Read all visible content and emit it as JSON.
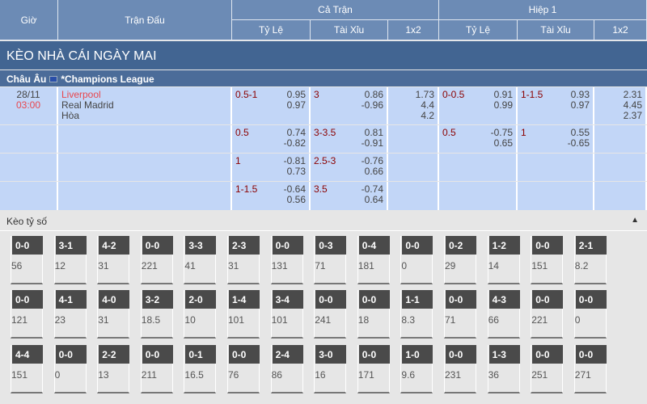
{
  "header": {
    "time": "Giờ",
    "match": "Trận Đấu",
    "full": "Cả Trận",
    "half": "Hiệp 1",
    "handicap": "Tỷ Lệ",
    "overunder": "Tài Xỉu",
    "onex2": "1x2"
  },
  "section_title": "KÈO NHÀ CÁI NGÀY MAI",
  "league": {
    "region": "Châu Âu",
    "name": "*Champions League"
  },
  "match": {
    "date": "28/11",
    "time": "03:00",
    "home": "Liverpool",
    "away": "Real Madrid",
    "draw": "Hòa"
  },
  "rows": [
    {
      "ft_hdp": "0.5-1",
      "ft_hdp_o": [
        "0.95",
        "0.97"
      ],
      "ft_ou": "3",
      "ft_ou_o": [
        "0.86",
        "-0.96"
      ],
      "ft_1x2": [
        "1.73",
        "4.4",
        "4.2"
      ],
      "h1_hdp": "0-0.5",
      "h1_hdp_o": [
        "0.91",
        "0.99"
      ],
      "h1_ou": "1-1.5",
      "h1_ou_o": [
        "0.93",
        "0.97"
      ],
      "h1_1x2": [
        "2.31",
        "4.45",
        "2.37"
      ]
    },
    {
      "ft_hdp": "0.5",
      "ft_hdp_o": [
        "0.74",
        "-0.82"
      ],
      "ft_ou": "3-3.5",
      "ft_ou_o": [
        "0.81",
        "-0.91"
      ],
      "h1_hdp": "0.5",
      "h1_hdp_o": [
        "-0.75",
        "0.65"
      ],
      "h1_ou": "1",
      "h1_ou_o": [
        "0.55",
        "-0.65"
      ]
    },
    {
      "ft_hdp": "1",
      "ft_hdp_o": [
        "-0.81",
        "0.73"
      ],
      "ft_ou": "2.5-3",
      "ft_ou_o": [
        "-0.76",
        "0.66"
      ]
    },
    {
      "ft_hdp": "1-1.5",
      "ft_hdp_o": [
        "-0.64",
        "0.56"
      ],
      "ft_ou": "3.5",
      "ft_ou_o": [
        "-0.74",
        "0.64"
      ]
    }
  ],
  "correct_score": {
    "title": "Kèo tỷ số",
    "toggle_icon": "caret-up-icon",
    "rows": [
      [
        [
          "0-0",
          "56"
        ],
        [
          "3-1",
          "12"
        ],
        [
          "4-2",
          "31"
        ],
        [
          "0-0",
          "221"
        ],
        [
          "3-3",
          "41"
        ],
        [
          "2-3",
          "31"
        ],
        [
          "0-0",
          "131"
        ],
        [
          "0-3",
          "71"
        ],
        [
          "0-4",
          "181"
        ],
        [
          "0-0",
          "0"
        ],
        [
          "0-2",
          "29"
        ],
        [
          "1-2",
          "14"
        ],
        [
          "0-0",
          "151"
        ],
        [
          "2-1",
          "8.2"
        ]
      ],
      [
        [
          "0-0",
          "121"
        ],
        [
          "4-1",
          "23"
        ],
        [
          "4-0",
          "31"
        ],
        [
          "3-2",
          "18.5"
        ],
        [
          "2-0",
          "10"
        ],
        [
          "1-4",
          "101"
        ],
        [
          "3-4",
          "101"
        ],
        [
          "0-0",
          "241"
        ],
        [
          "0-0",
          "18"
        ],
        [
          "1-1",
          "8.3"
        ],
        [
          "0-0",
          "71"
        ],
        [
          "4-3",
          "66"
        ],
        [
          "0-0",
          "221"
        ],
        [
          "0-0",
          "0"
        ]
      ],
      [
        [
          "4-4",
          "151"
        ],
        [
          "0-0",
          "0"
        ],
        [
          "2-2",
          "13"
        ],
        [
          "0-0",
          "211"
        ],
        [
          "0-1",
          "16.5"
        ],
        [
          "0-0",
          "76"
        ],
        [
          "2-4",
          "86"
        ],
        [
          "3-0",
          "16"
        ],
        [
          "0-0",
          "171"
        ],
        [
          "1-0",
          "9.6"
        ],
        [
          "0-0",
          "231"
        ],
        [
          "1-3",
          "36"
        ],
        [
          "0-0",
          "251"
        ],
        [
          "0-0",
          "271"
        ]
      ]
    ]
  },
  "colors": {
    "header": "#6c8bb5",
    "title_bar": "#426592",
    "row_bg": "#c2d6f7",
    "red": "#e8474f",
    "line_red": "#8b0000"
  }
}
